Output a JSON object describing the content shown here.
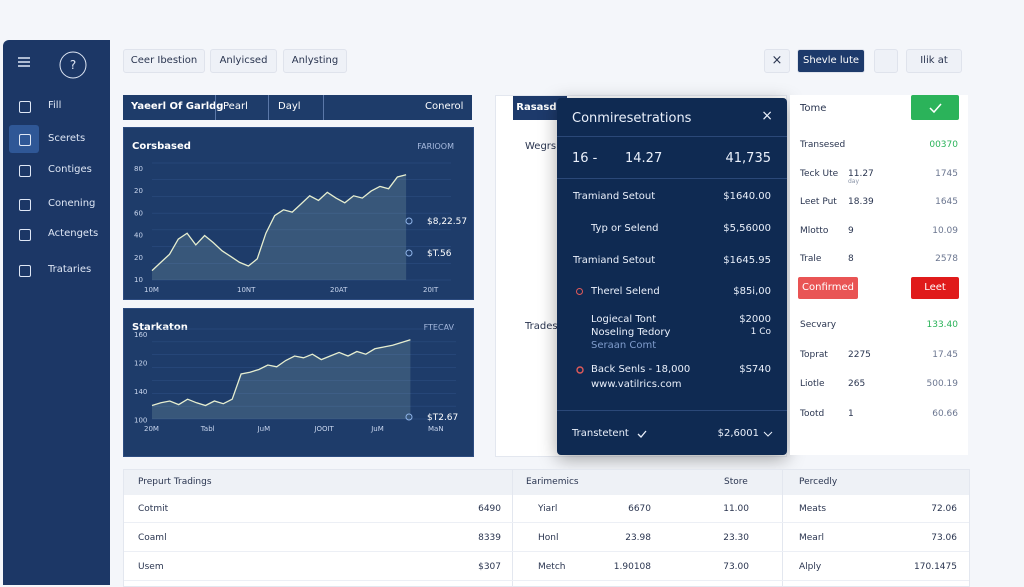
{
  "sidebar": {
    "items": [
      "Fill",
      "Scerets",
      "Contiges",
      "Conening",
      "Actengets",
      "Trataries"
    ]
  },
  "toolbar": {
    "tabs": [
      "Ceer Ibestion",
      "Anlyicsed",
      "Anlysting"
    ],
    "primary": "Shevle lute",
    "link": "Ilik at"
  },
  "panel": {
    "tabs": [
      "Yaeerl Of Garldg",
      "Pearl",
      "Dayl",
      "Conerol"
    ]
  },
  "charts": [
    {
      "type": "line",
      "title": "Corsbased",
      "badge": "FARIOOM",
      "ylabels": [
        "80",
        "20",
        "60",
        "40",
        "20",
        "10"
      ],
      "xlabels": [
        "10M",
        "10NT",
        "20AT",
        "20IT"
      ],
      "ylim": [
        0,
        100
      ],
      "values": [
        8,
        15,
        22,
        35,
        40,
        30,
        38,
        32,
        25,
        20,
        15,
        12,
        18,
        40,
        55,
        60,
        58,
        65,
        72,
        68,
        75,
        70,
        66,
        72,
        70,
        76,
        80,
        78,
        88,
        90
      ],
      "markers": [
        "$8,22.57",
        "$T.56"
      ]
    },
    {
      "type": "line",
      "title": "Starkaton",
      "badge": "FTECAV",
      "ylabels": [
        "160",
        "120",
        "140",
        "100"
      ],
      "xlabels": [
        "20M",
        "Tabl",
        "JuM",
        "JOOIT",
        "JuM",
        "MaN"
      ],
      "ylim": [
        0,
        100
      ],
      "values": [
        15,
        18,
        20,
        16,
        22,
        18,
        15,
        20,
        17,
        22,
        50,
        52,
        55,
        60,
        58,
        65,
        70,
        68,
        72,
        66,
        70,
        74,
        70,
        75,
        72,
        78,
        80,
        82,
        85,
        88
      ],
      "markers": [
        "$T2.67"
      ]
    }
  ],
  "middle": {
    "header": "Rasasdd",
    "labels": [
      "Wegrs",
      "Trades"
    ]
  },
  "modal": {
    "title": "Conmiresetrations",
    "summary": [
      "16 -",
      "14.27",
      "41,735"
    ],
    "rows": [
      [
        "Tramiand Setout",
        "$1640.00"
      ],
      [
        "Typ or Selend",
        "$5,56000"
      ],
      [
        "Tramiand Setout",
        "$1645.95"
      ],
      [
        "Therel Selend",
        "$85i,00"
      ]
    ],
    "block1": [
      "Logiecal Tont",
      "Noseling Tedory",
      "Seraan Comt",
      "$2000",
      "1 Co"
    ],
    "block2": [
      "Back Senls - 18,000",
      "www.vatilrics.com",
      "$S740"
    ],
    "footer": [
      "Transtetent",
      "$2,6001"
    ]
  },
  "right": {
    "top": "Tome",
    "rows": [
      [
        "Transesed",
        "",
        "00370"
      ],
      [
        "Teck Ute",
        "11.27",
        "1745"
      ],
      [
        "Leet Put",
        "18.39",
        "1645"
      ],
      [
        "Mlotto",
        "9",
        "10.09"
      ],
      [
        "Trale",
        "8",
        "2578"
      ]
    ],
    "sub": "day",
    "buttons": [
      "Confirmed",
      "Leet"
    ],
    "rows2": [
      [
        "Secvary",
        "",
        "133.40"
      ],
      [
        "Toprat",
        "2275",
        "17.45"
      ],
      [
        "Liotle",
        "265",
        "500.19"
      ],
      [
        "Tootd",
        "1",
        "60.66"
      ]
    ]
  },
  "table": {
    "headers": [
      "Prepurt Tradings",
      "Earimemics",
      "Store",
      "Percedly"
    ],
    "rows": [
      [
        "Cotmit",
        "6490",
        "Yiarl",
        "6670",
        "11.00",
        "Meats",
        "72.06"
      ],
      [
        "Coaml",
        "8339",
        "Honl",
        "23.98",
        "23.30",
        "Mearl",
        "73.06"
      ],
      [
        "Usem",
        "$307",
        "Metch",
        "1.90108",
        "73.00",
        "Alply",
        "170.1475"
      ]
    ]
  }
}
